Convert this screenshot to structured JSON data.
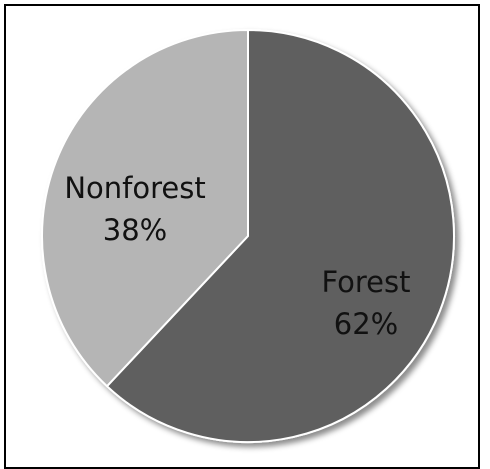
{
  "chart_data": {
    "type": "pie",
    "categories": [
      "Forest",
      "Nonforest"
    ],
    "values": [
      62,
      38
    ],
    "value_labels": [
      "62%",
      "38%"
    ],
    "colors": [
      "#5f5f5f",
      "#b5b5b5"
    ],
    "start": "12 o'clock",
    "direction": "clockwise"
  }
}
